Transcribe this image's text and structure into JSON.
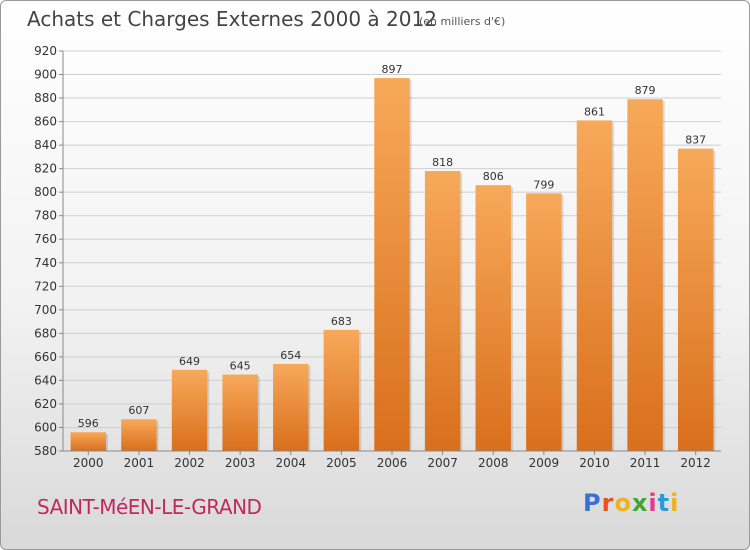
{
  "title": "Achats et Charges Externes 2000 à 2012",
  "subtitle": "(en milliers d'€)",
  "location": "SAINT-MéEN-LE-GRAND",
  "logo_text": "Proxiti",
  "colors": {
    "bar_top": "#f7a95a",
    "bar_bottom": "#d96f1c",
    "grid": "#cfcfcf",
    "title": "#444444",
    "location": "#c0295e",
    "logo": [
      "#3a6fd6",
      "#e8521f",
      "#f0b21a",
      "#3fa535",
      "#e23a8c",
      "#2a9bd8",
      "#f0b21a"
    ]
  },
  "chart_data": {
    "type": "bar",
    "title": "Achats et Charges Externes 2000 à 2012",
    "subtitle": "(en milliers d'€)",
    "categories": [
      "2000",
      "2001",
      "2002",
      "2003",
      "2004",
      "2005",
      "2006",
      "2007",
      "2008",
      "2009",
      "2010",
      "2011",
      "2012"
    ],
    "values": [
      596,
      607,
      649,
      645,
      654,
      683,
      897,
      818,
      806,
      799,
      861,
      879,
      837
    ],
    "ylim": [
      580,
      920
    ],
    "yticks": [
      580,
      600,
      620,
      640,
      660,
      680,
      700,
      720,
      740,
      760,
      780,
      800,
      820,
      840,
      860,
      880,
      900,
      920
    ],
    "grid": true,
    "xlabel": "",
    "ylabel": ""
  }
}
